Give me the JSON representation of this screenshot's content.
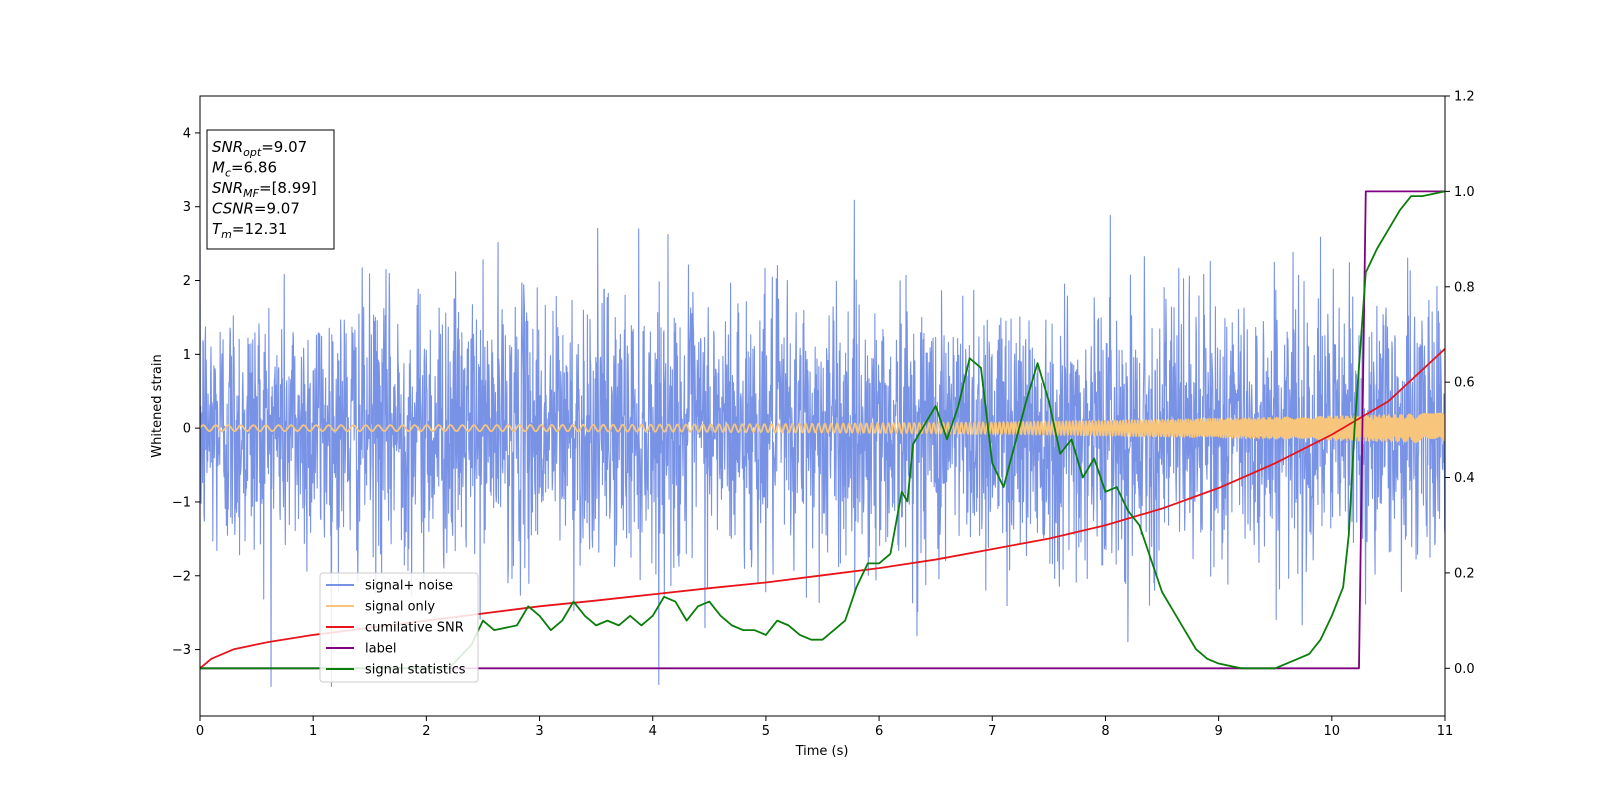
{
  "chart_data": {
    "type": "line",
    "xlabel": "Time (s)",
    "ylabel": "Whitened strain",
    "xlim": [
      0,
      11
    ],
    "ylim": [
      -3.9,
      4.5
    ],
    "y2lim": [
      -0.1,
      1.2
    ],
    "grid": false,
    "legend_position": "lower-left",
    "x_ticks": [
      "0",
      "1",
      "2",
      "3",
      "4",
      "5",
      "6",
      "7",
      "8",
      "9",
      "10",
      "11"
    ],
    "y_ticks": [
      "−3",
      "−2",
      "−1",
      "0",
      "1",
      "2",
      "3",
      "4"
    ],
    "y2_ticks": [
      "0.0",
      "0.2",
      "0.4",
      "0.6",
      "0.8",
      "1.0",
      "1.2"
    ],
    "annotation": [
      {
        "var": "SNR",
        "sub": "opt",
        "value": "=9.07"
      },
      {
        "var": "M",
        "sub": "c",
        "value": "=6.86"
      },
      {
        "var": "SNR",
        "sub": "MF",
        "value": "=[8.99]"
      },
      {
        "var": "CSNR",
        "sub": "",
        "value": "=9.07"
      },
      {
        "var": "T",
        "sub": "m",
        "value": "=12.31"
      }
    ],
    "series": [
      {
        "name": "signal+ noise",
        "axis": "left",
        "color": "#7892e6",
        "style": "noise",
        "std": 0.9,
        "x_range": [
          0,
          11
        ]
      },
      {
        "name": "signal only",
        "axis": "left",
        "color": "#f7c57c",
        "style": "chirp",
        "amplitude_start": 0.04,
        "amplitude_end": 0.2,
        "x_range": [
          0,
          11
        ]
      },
      {
        "name": "cumilative SNR",
        "axis": "right",
        "color": "#e8141a",
        "x": [
          0,
          0.1,
          0.3,
          0.6,
          1,
          1.5,
          2,
          2.5,
          3,
          3.5,
          4,
          4.5,
          5,
          5.5,
          6,
          6.5,
          7,
          7.5,
          8,
          8.5,
          9,
          9.5,
          10,
          10.5,
          11
        ],
        "values": [
          0.0,
          0.02,
          0.04,
          0.055,
          0.07,
          0.085,
          0.1,
          0.115,
          0.13,
          0.142,
          0.155,
          0.168,
          0.18,
          0.195,
          0.21,
          0.228,
          0.25,
          0.272,
          0.3,
          0.335,
          0.378,
          0.43,
          0.49,
          0.56,
          0.67
        ]
      },
      {
        "name": "label",
        "axis": "right",
        "color": "#800080",
        "x": [
          0,
          10.24,
          10.3,
          11
        ],
        "values": [
          0.0,
          0.0,
          1.0,
          1.0
        ]
      },
      {
        "name": "signal statistics",
        "axis": "right",
        "color": "#0a7d0a",
        "x": [
          0,
          0.5,
          1,
          1.5,
          2,
          2.2,
          2.4,
          2.5,
          2.6,
          2.8,
          2.9,
          3.0,
          3.1,
          3.2,
          3.3,
          3.4,
          3.5,
          3.6,
          3.7,
          3.8,
          3.9,
          4.0,
          4.1,
          4.2,
          4.3,
          4.4,
          4.5,
          4.6,
          4.7,
          4.8,
          4.9,
          5.0,
          5.1,
          5.2,
          5.3,
          5.4,
          5.5,
          5.6,
          5.7,
          5.8,
          5.9,
          6.0,
          6.1,
          6.2,
          6.25,
          6.3,
          6.4,
          6.5,
          6.6,
          6.7,
          6.8,
          6.9,
          7.0,
          7.1,
          7.2,
          7.3,
          7.4,
          7.5,
          7.6,
          7.7,
          7.8,
          7.9,
          8.0,
          8.1,
          8.2,
          8.3,
          8.4,
          8.5,
          8.6,
          8.7,
          8.8,
          8.9,
          9.0,
          9.2,
          9.4,
          9.5,
          9.6,
          9.7,
          9.8,
          9.9,
          10.0,
          10.1,
          10.15,
          10.2,
          10.3,
          10.4,
          10.5,
          10.6,
          10.7,
          10.8,
          11
        ],
        "values": [
          0.0,
          0.0,
          0.0,
          0.0,
          0.0,
          0.0,
          0.05,
          0.1,
          0.08,
          0.09,
          0.13,
          0.11,
          0.08,
          0.1,
          0.14,
          0.11,
          0.09,
          0.1,
          0.09,
          0.11,
          0.09,
          0.11,
          0.15,
          0.14,
          0.1,
          0.13,
          0.14,
          0.11,
          0.09,
          0.08,
          0.08,
          0.07,
          0.1,
          0.09,
          0.07,
          0.06,
          0.06,
          0.08,
          0.1,
          0.17,
          0.22,
          0.22,
          0.24,
          0.37,
          0.35,
          0.47,
          0.51,
          0.55,
          0.48,
          0.55,
          0.65,
          0.63,
          0.43,
          0.38,
          0.47,
          0.56,
          0.64,
          0.56,
          0.45,
          0.48,
          0.4,
          0.44,
          0.37,
          0.38,
          0.33,
          0.3,
          0.23,
          0.16,
          0.12,
          0.08,
          0.04,
          0.02,
          0.01,
          0.0,
          0.0,
          0.0,
          0.01,
          0.02,
          0.03,
          0.06,
          0.11,
          0.17,
          0.28,
          0.5,
          0.83,
          0.88,
          0.92,
          0.96,
          0.99,
          0.99,
          1.0
        ]
      }
    ]
  }
}
